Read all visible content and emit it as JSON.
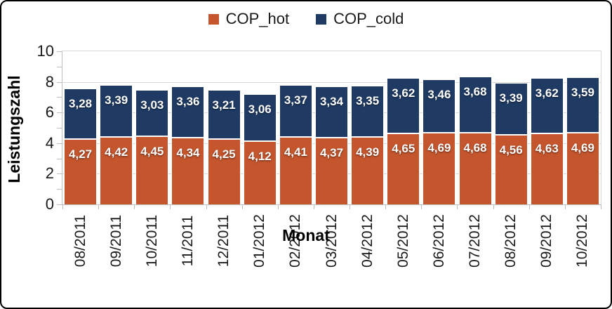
{
  "chart_data": {
    "type": "bar",
    "stacked": true,
    "title": "",
    "xlabel": "Monat",
    "ylabel": "Leistungszahl",
    "ylim": [
      0,
      10
    ],
    "ytick_step": 2,
    "yminor_step": 1,
    "ytick_labels": [
      "0",
      "2",
      "4",
      "6",
      "8",
      "10"
    ],
    "grid": true,
    "legend_position": "top",
    "decimal_separator": ",",
    "categories": [
      "08/2011",
      "09/2011",
      "10/2011",
      "11/2011",
      "12/2011",
      "01/2012",
      "02/2012",
      "03/2012",
      "04/2012",
      "05/2012",
      "06/2012",
      "07/2012",
      "08/2012",
      "09/2012",
      "10/2012"
    ],
    "series": [
      {
        "name": "COP_hot",
        "color": "#C4552D",
        "values": [
          4.27,
          4.42,
          4.45,
          4.34,
          4.25,
          4.12,
          4.41,
          4.37,
          4.39,
          4.65,
          4.69,
          4.68,
          4.56,
          4.63,
          4.69
        ],
        "labels": [
          "4,27",
          "4,42",
          "4,45",
          "4,34",
          "4,25",
          "4,12",
          "4,41",
          "4,37",
          "4,39",
          "4,65",
          "4,69",
          "4,68",
          "4,56",
          "4,63",
          "4,69"
        ]
      },
      {
        "name": "COP_cold",
        "color": "#1F3B64",
        "values": [
          3.28,
          3.39,
          3.03,
          3.36,
          3.21,
          3.06,
          3.37,
          3.34,
          3.35,
          3.62,
          3.46,
          3.68,
          3.39,
          3.62,
          3.59
        ],
        "labels": [
          "3,28",
          "3,39",
          "3,03",
          "3,36",
          "3,21",
          "3,06",
          "3,37",
          "3,34",
          "3,35",
          "3,62",
          "3,46",
          "3,68",
          "3,39",
          "3,62",
          "3,59"
        ]
      }
    ]
  },
  "colors": {
    "grid": "#D9D9D9",
    "axis": "#BFBFBF",
    "text": "#1a1a1a",
    "frame_border": "#000000"
  }
}
